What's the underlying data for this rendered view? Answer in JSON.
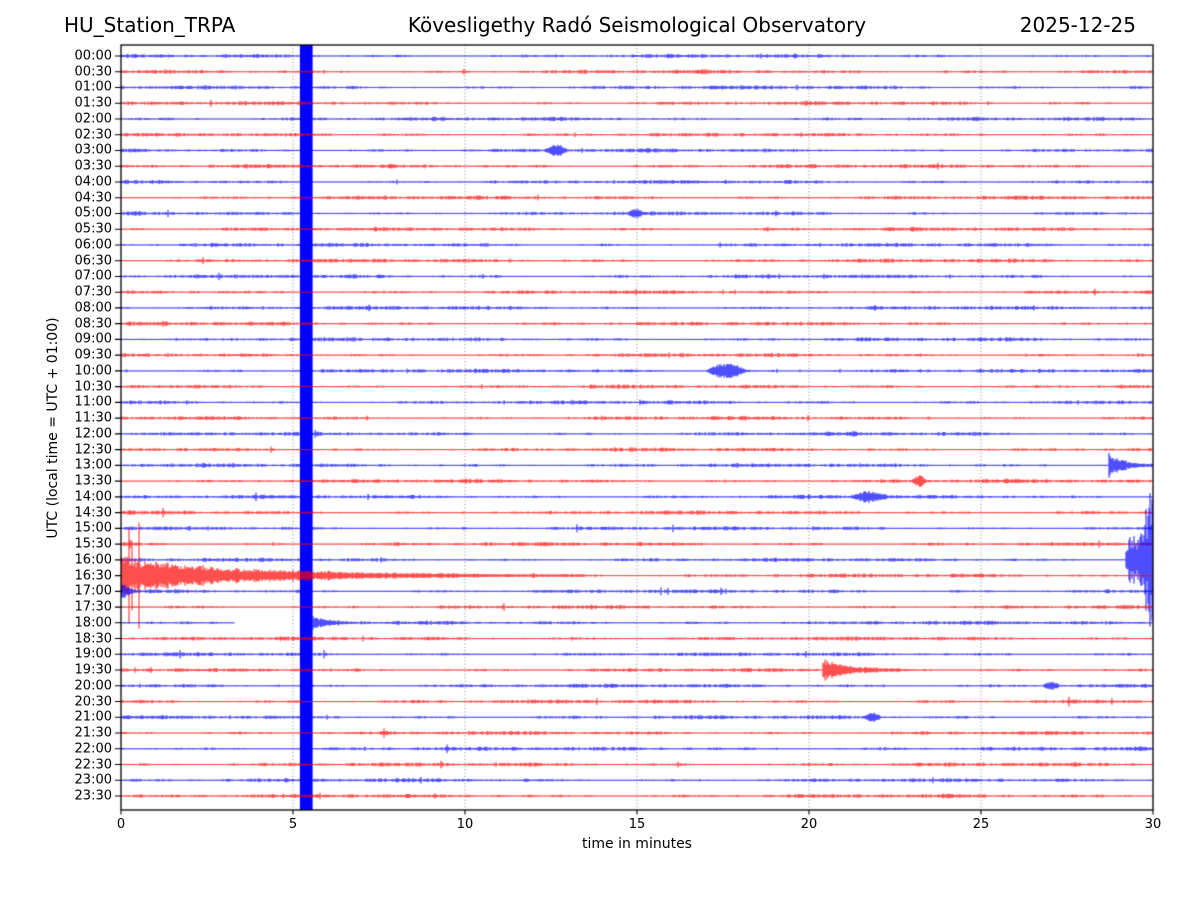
{
  "header": {
    "station": "HU_Station_TRPA",
    "observatory": "Kövesligethy Radó Seismological Observatory",
    "date": "2025-12-25"
  },
  "axes": {
    "xlabel": "time in minutes",
    "ylabel": "UTC (local time = UTC + 01:00)",
    "x_ticks": [
      0,
      5,
      10,
      15,
      20,
      25,
      30
    ],
    "x_range": [
      0,
      30
    ],
    "grid_minutes": [
      5,
      10,
      15,
      20,
      25
    ]
  },
  "colors": {
    "trace_blue": "#0000ff",
    "trace_red": "#ff0000",
    "axis": "#000000",
    "grid": "#555555",
    "background": "#ffffff"
  },
  "chart_data": {
    "type": "line",
    "subtype": "helicorder-seismogram",
    "minutes_per_row": 30,
    "rows": [
      {
        "time": "00:00",
        "color": "blue"
      },
      {
        "time": "00:30",
        "color": "red"
      },
      {
        "time": "01:00",
        "color": "blue"
      },
      {
        "time": "01:30",
        "color": "red"
      },
      {
        "time": "02:00",
        "color": "blue"
      },
      {
        "time": "02:30",
        "color": "red"
      },
      {
        "time": "03:00",
        "color": "blue"
      },
      {
        "time": "03:30",
        "color": "red"
      },
      {
        "time": "04:00",
        "color": "blue"
      },
      {
        "time": "04:30",
        "color": "red"
      },
      {
        "time": "05:00",
        "color": "blue"
      },
      {
        "time": "05:30",
        "color": "red"
      },
      {
        "time": "06:00",
        "color": "blue"
      },
      {
        "time": "06:30",
        "color": "red"
      },
      {
        "time": "07:00",
        "color": "blue"
      },
      {
        "time": "07:30",
        "color": "red"
      },
      {
        "time": "08:00",
        "color": "blue"
      },
      {
        "time": "08:30",
        "color": "red"
      },
      {
        "time": "09:00",
        "color": "blue"
      },
      {
        "time": "09:30",
        "color": "red"
      },
      {
        "time": "10:00",
        "color": "blue"
      },
      {
        "time": "10:30",
        "color": "red"
      },
      {
        "time": "11:00",
        "color": "blue"
      },
      {
        "time": "11:30",
        "color": "red"
      },
      {
        "time": "12:00",
        "color": "blue"
      },
      {
        "time": "12:30",
        "color": "red"
      },
      {
        "time": "13:00",
        "color": "blue"
      },
      {
        "time": "13:30",
        "color": "red"
      },
      {
        "time": "14:00",
        "color": "blue"
      },
      {
        "time": "14:30",
        "color": "red"
      },
      {
        "time": "15:00",
        "color": "blue"
      },
      {
        "time": "15:30",
        "color": "red"
      },
      {
        "time": "16:00",
        "color": "blue"
      },
      {
        "time": "16:30",
        "color": "red"
      },
      {
        "time": "17:00",
        "color": "blue"
      },
      {
        "time": "17:30",
        "color": "red"
      },
      {
        "time": "18:00",
        "color": "blue"
      },
      {
        "time": "18:30",
        "color": "red"
      },
      {
        "time": "19:00",
        "color": "blue"
      },
      {
        "time": "19:30",
        "color": "red"
      },
      {
        "time": "20:00",
        "color": "blue"
      },
      {
        "time": "20:30",
        "color": "red"
      },
      {
        "time": "21:00",
        "color": "blue"
      },
      {
        "time": "21:30",
        "color": "red"
      },
      {
        "time": "22:00",
        "color": "blue"
      },
      {
        "time": "22:30",
        "color": "red"
      },
      {
        "time": "23:00",
        "color": "blue"
      },
      {
        "time": "23:30",
        "color": "red"
      }
    ],
    "events": [
      {
        "row": "03:00",
        "start_min": 12.3,
        "end_min": 13.0,
        "peak_amp": 5,
        "shape": "burst",
        "note": "small burst"
      },
      {
        "row": "05:00",
        "start_min": 14.7,
        "end_min": 15.2,
        "peak_amp": 3.5,
        "shape": "burst",
        "note": "minor blip"
      },
      {
        "row": "10:00",
        "start_min": 17.0,
        "end_min": 18.2,
        "peak_amp": 7,
        "shape": "burst",
        "note": "noise burst"
      },
      {
        "row": "13:00",
        "start_min": 28.7,
        "end_min": 30,
        "peak_amp": 13,
        "shape": "spike_decay",
        "note": "sharp spike ~28.8 min"
      },
      {
        "row": "13:30",
        "start_min": 23.0,
        "end_min": 23.4,
        "peak_amp": 5,
        "shape": "burst",
        "note": "small blip"
      },
      {
        "row": "14:00",
        "start_min": 21.2,
        "end_min": 22.3,
        "peak_amp": 5,
        "shape": "burst",
        "note": "small burst"
      },
      {
        "row": "16:00",
        "start_min": 29.2,
        "end_min": 30,
        "peak_amp": 66,
        "shape": "giant_growth",
        "note": "large event onset at ~16:29, spills over adjacent rows"
      },
      {
        "row": "16:30",
        "start_min": 0,
        "end_min": 13.5,
        "peak_amp": 17,
        "spike_amp": 45,
        "shape": "event_decay",
        "note": "large event continuation, decaying coda"
      },
      {
        "row": "17:00",
        "start_min": 0,
        "end_min": 0.5,
        "peak_amp": 12,
        "shape": "spike_decay",
        "note": "residual spike at row start"
      },
      {
        "row": "18:00",
        "start_min": 5.57,
        "end_min": 6.8,
        "peak_amp": 6,
        "shape": "spike_decay",
        "note": "recovery burst after gap"
      },
      {
        "row": "19:30",
        "start_min": 20.4,
        "end_min": 22.6,
        "peak_amp": 11,
        "shape": "spike_decay",
        "note": "local event ~20.5 min"
      },
      {
        "row": "20:00",
        "start_min": 26.8,
        "end_min": 27.3,
        "peak_amp": 4,
        "shape": "burst",
        "note": "small blip"
      },
      {
        "row": "21:00",
        "start_min": 21.6,
        "end_min": 22.1,
        "peak_amp": 4,
        "shape": "burst",
        "note": "small blip"
      }
    ],
    "artifacts": {
      "calibration_bar": {
        "start_min": 5.2,
        "end_min": 5.57,
        "color": "#0000ff",
        "all_rows": true,
        "note": "solid vertical blue bar through every row"
      },
      "data_gap": {
        "row": "18:00",
        "start_min": 3.3,
        "end_min": 5.57,
        "note": "trace missing (white gap)"
      }
    }
  }
}
